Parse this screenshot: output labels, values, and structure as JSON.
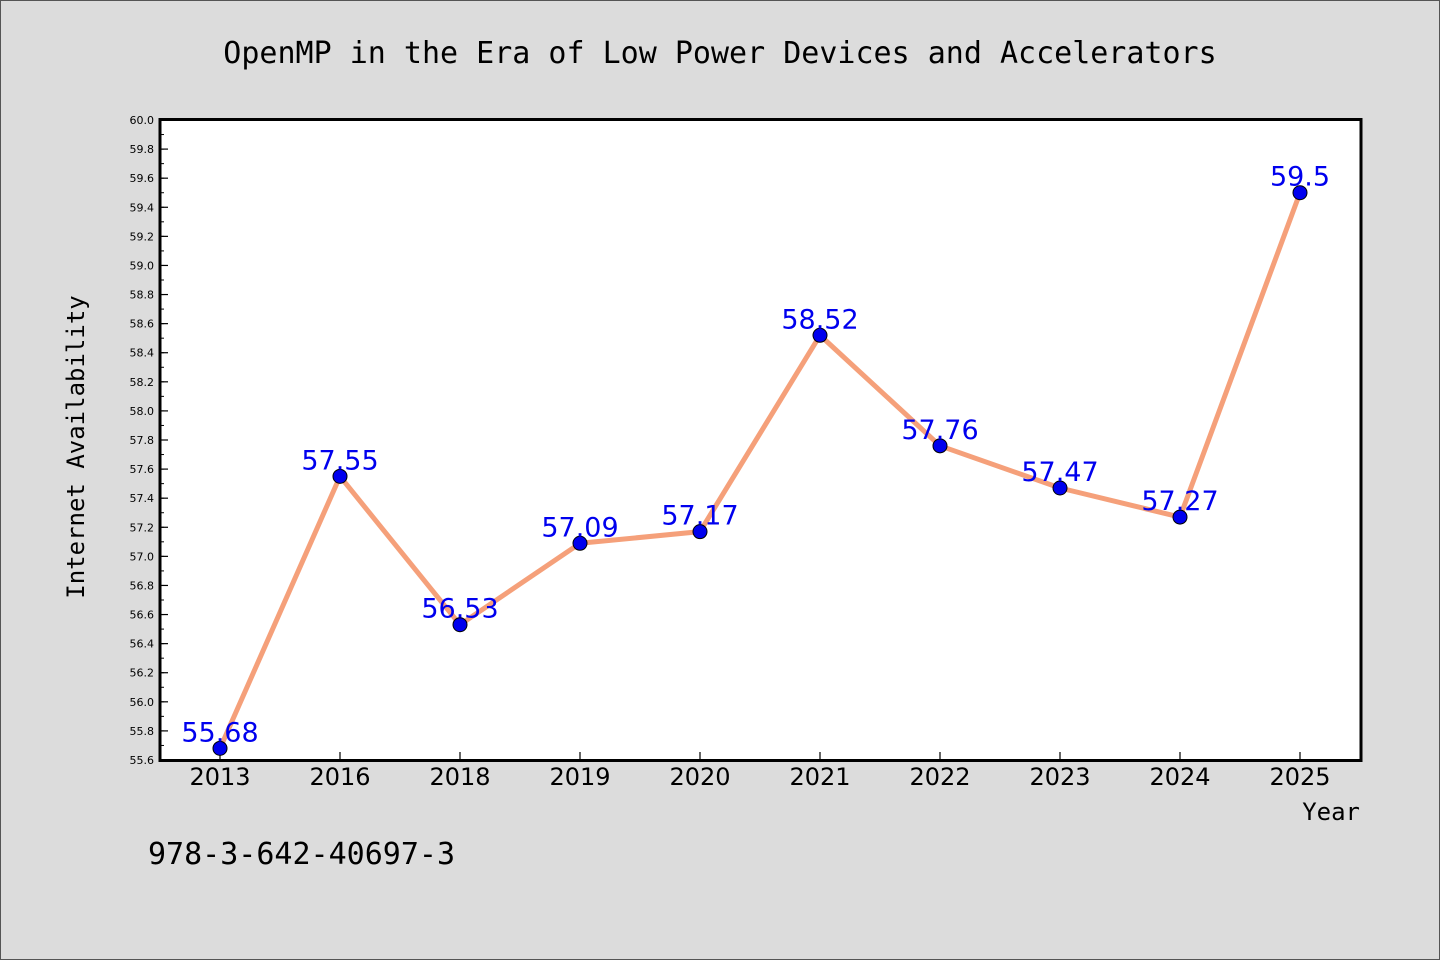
{
  "chart_data": {
    "type": "line",
    "title": "OpenMP in the Era of Low Power Devices and Accelerators",
    "xlabel": "Year",
    "ylabel": "Internet Availability",
    "categories": [
      "2013",
      "2016",
      "2018",
      "2019",
      "2020",
      "2021",
      "2022",
      "2023",
      "2024",
      "2025"
    ],
    "series": [
      {
        "values": [
          55.68,
          57.55,
          56.53,
          57.09,
          57.17,
          58.52,
          57.76,
          57.47,
          57.27,
          59.5
        ],
        "data_labels": [
          "55.68",
          "57.55",
          "56.53",
          "57.09",
          "57.17",
          "58.52",
          "57.76",
          "57.47",
          "57.27",
          "59.5"
        ],
        "line_color": "#f5a07a",
        "marker_color": "#0000ee"
      }
    ],
    "ylim": [
      55.6,
      60.0
    ],
    "ytick_labels": [
      "55.6",
      "55.8",
      "56.0",
      "56.2",
      "56.4",
      "56.6",
      "56.8",
      "57.0",
      "57.2",
      "57.4",
      "57.6",
      "57.8",
      "58.0",
      "58.2",
      "58.4",
      "58.6",
      "58.8",
      "59.0",
      "59.2",
      "59.4",
      "59.6",
      "59.8",
      "60.0"
    ],
    "grid": false,
    "legend": "none",
    "label_color": "#0000ee",
    "plot_background": "#ffffff",
    "figure_background": "#dcdcdc"
  },
  "annotation": "978-3-642-40697-3"
}
